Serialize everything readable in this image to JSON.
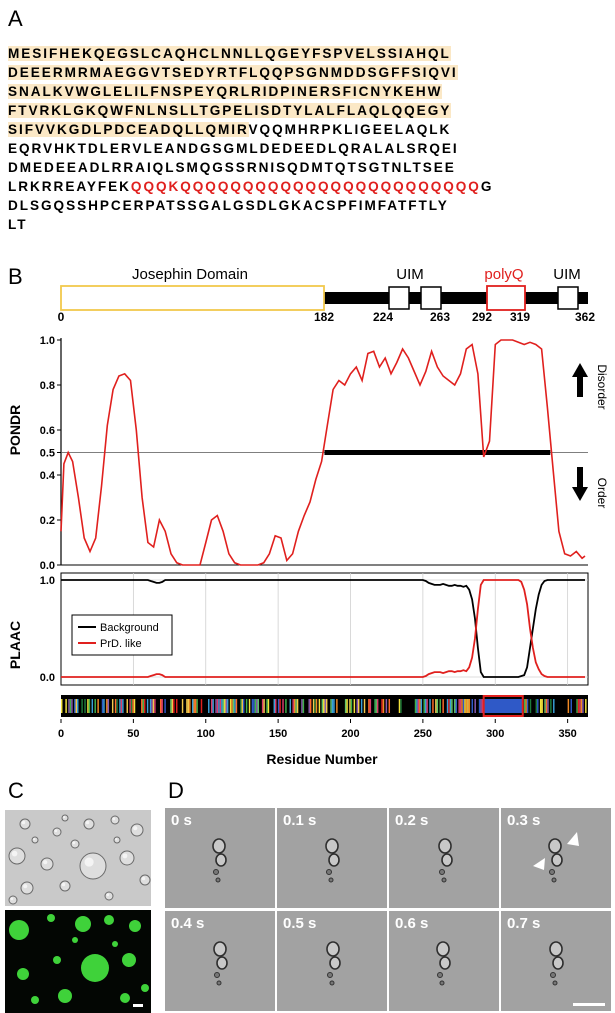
{
  "panels": {
    "a": "A",
    "b": "B",
    "c": "C",
    "d": "D"
  },
  "sequence": {
    "lines": [
      {
        "hl": "MESIFHEKQEGSLCAQHCLNNLLQGEYFSPVELSSIAHQL",
        "rest": "",
        "red": "",
        "tail": ""
      },
      {
        "hl": "DEEERMRMAEGGVTSEDYRTFLQQPSGNMDDSGFFSIQVI",
        "rest": "",
        "red": "",
        "tail": ""
      },
      {
        "hl": "SNALKVWGLELILFNSPEYQRLRIDPINERSFICNYKEHW",
        "rest": "",
        "red": "",
        "tail": ""
      },
      {
        "hl": "FTVRKLGKQWFNLNSLLTGPELISDTYLALFLAQLQQEGY",
        "rest": "",
        "red": "",
        "tail": ""
      },
      {
        "hl": "SIFVVKGDLPDCEADQLLQMIR",
        "rest": "VQQMHRPKLIGEELAQLK",
        "red": "",
        "tail": ""
      },
      {
        "hl": "",
        "rest": "EQRVHKTDLERVLEANDGSGMLDEDEEDLQRALALSRQEI",
        "red": "",
        "tail": ""
      },
      {
        "hl": "",
        "rest": "DMEDEEADLRRAIQLSMQGSSRNISQDMTQTSGTNLTSEE",
        "red": "",
        "tail": ""
      },
      {
        "hl": "",
        "rest": "LRKRREAYFEK",
        "red": "QQQKQQQQQQQQQQQQQQQQQQQQQQQQ",
        "tail": "G"
      },
      {
        "hl": "",
        "rest": "DLSGQSSHPCERPATSSGALGSDLGKACSPFIMFATFTLY",
        "red": "",
        "tail": ""
      },
      {
        "hl": "",
        "rest": "LT",
        "red": "",
        "tail": ""
      }
    ]
  },
  "domain_map": {
    "labels": {
      "josephin": "Josephin Domain",
      "uim1": "UIM",
      "polyq": "polyQ",
      "uim2": "UIM"
    },
    "positions": [
      {
        "label": "0",
        "value": 0
      },
      {
        "label": "182",
        "value": 182
      },
      {
        "label": "224",
        "value": 224
      },
      {
        "label": "263",
        "value": 263
      },
      {
        "label": "292",
        "value": 292
      },
      {
        "label": "319",
        "value": 319
      },
      {
        "label": "362",
        "value": 362
      }
    ],
    "colors": {
      "josephin": "#f2c94c",
      "polyq": "#e0201e",
      "backbone": "#000000"
    }
  },
  "chart_data": [
    {
      "type": "line",
      "ylabel": "PONDR",
      "xlim": [
        0,
        362
      ],
      "ylim": [
        0,
        1.0
      ],
      "yticks": [
        "0.0",
        "0.2",
        "0.4",
        "0.5",
        "0.6",
        "0.8",
        "1.0"
      ],
      "threshold": 0.5,
      "ordered_bar": [
        182,
        338
      ],
      "annotations": {
        "up": "Disorder",
        "down": "Order"
      },
      "series": [
        {
          "color": "#e0201e",
          "x": [
            0,
            2,
            5,
            8,
            12,
            16,
            20,
            24,
            28,
            32,
            36,
            40,
            44,
            48,
            52,
            56,
            60,
            64,
            68,
            72,
            76,
            80,
            84,
            88,
            92,
            96,
            100,
            104,
            108,
            112,
            116,
            120,
            124,
            128,
            132,
            136,
            140,
            144,
            148,
            152,
            156,
            160,
            164,
            168,
            172,
            176,
            180,
            184,
            188,
            192,
            196,
            200,
            204,
            208,
            212,
            216,
            220,
            224,
            228,
            232,
            236,
            240,
            244,
            248,
            252,
            256,
            260,
            264,
            268,
            272,
            276,
            280,
            284,
            288,
            292,
            296,
            300,
            304,
            308,
            312,
            316,
            320,
            324,
            328,
            332,
            336,
            340,
            344,
            348,
            352,
            356,
            360,
            362
          ],
          "y": [
            0.15,
            0.45,
            0.5,
            0.46,
            0.3,
            0.12,
            0.06,
            0.12,
            0.35,
            0.62,
            0.78,
            0.84,
            0.85,
            0.82,
            0.6,
            0.3,
            0.1,
            0.08,
            0.2,
            0.15,
            0.05,
            0.01,
            0.0,
            0.0,
            0.0,
            0.0,
            0.1,
            0.2,
            0.22,
            0.15,
            0.05,
            0.01,
            0.0,
            0.0,
            0.0,
            0.0,
            0.01,
            0.05,
            0.13,
            0.12,
            0.02,
            0.05,
            0.15,
            0.22,
            0.28,
            0.38,
            0.46,
            0.62,
            0.78,
            0.82,
            0.8,
            0.85,
            0.88,
            0.82,
            0.94,
            0.95,
            0.88,
            0.92,
            0.85,
            0.9,
            0.96,
            0.92,
            0.86,
            0.8,
            0.86,
            0.95,
            0.88,
            0.84,
            0.82,
            0.8,
            0.85,
            0.96,
            0.98,
            0.85,
            0.48,
            0.55,
            0.98,
            1.0,
            1.0,
            1.0,
            0.99,
            0.98,
            0.99,
            0.98,
            0.96,
            0.7,
            0.42,
            0.15,
            0.05,
            0.04,
            0.06,
            0.03,
            0.04
          ]
        }
      ]
    },
    {
      "type": "line",
      "ylabel": "PLAAC",
      "xlabel": "Residue Number",
      "xlim": [
        0,
        362
      ],
      "ylim": [
        0,
        1.0
      ],
      "yticks": [
        "0.0",
        "1.0"
      ],
      "xticks": [
        "0",
        "50",
        "100",
        "150",
        "200",
        "250",
        "300",
        "350"
      ],
      "grid": "vertical",
      "legend": "top-left",
      "series": [
        {
          "name": "Background",
          "color": "#000000",
          "x": [
            0,
            60,
            62,
            64,
            66,
            68,
            70,
            72,
            250,
            252,
            254,
            256,
            258,
            260,
            262,
            264,
            266,
            268,
            270,
            272,
            274,
            276,
            278,
            280,
            282,
            284,
            286,
            288,
            290,
            292,
            294,
            296,
            300,
            310,
            316,
            320,
            322,
            324,
            326,
            328,
            330,
            332,
            334,
            336,
            338,
            362
          ],
          "y": [
            1,
            1,
            0.99,
            0.98,
            0.97,
            0.97,
            0.98,
            1,
            1,
            0.99,
            0.97,
            0.96,
            0.95,
            0.95,
            0.95,
            0.96,
            0.95,
            0.94,
            0.94,
            0.95,
            0.94,
            0.94,
            0.93,
            0.94,
            0.9,
            0.8,
            0.6,
            0.3,
            0.05,
            0.0,
            0.0,
            0.0,
            0.0,
            0.0,
            0.0,
            0.02,
            0.1,
            0.3,
            0.5,
            0.7,
            0.85,
            0.95,
            0.99,
            1,
            1,
            1
          ]
        },
        {
          "name": "PrD. like",
          "color": "#e0201e",
          "x": [
            0,
            60,
            62,
            64,
            66,
            68,
            70,
            72,
            250,
            252,
            254,
            256,
            258,
            260,
            262,
            264,
            266,
            268,
            270,
            272,
            274,
            276,
            278,
            280,
            282,
            284,
            286,
            288,
            290,
            292,
            294,
            296,
            300,
            310,
            316,
            318,
            320,
            322,
            324,
            326,
            328,
            330,
            332,
            334,
            336,
            338,
            362
          ],
          "y": [
            0,
            0,
            0.01,
            0.02,
            0.03,
            0.03,
            0.02,
            0,
            0,
            0.01,
            0.03,
            0.04,
            0.05,
            0.05,
            0.05,
            0.04,
            0.05,
            0.06,
            0.06,
            0.05,
            0.06,
            0.06,
            0.07,
            0.06,
            0.1,
            0.2,
            0.4,
            0.7,
            0.95,
            1.0,
            1.0,
            1.0,
            1.0,
            1.0,
            1.0,
            0.98,
            0.9,
            0.75,
            0.5,
            0.3,
            0.15,
            0.08,
            0.03,
            0.01,
            0,
            0,
            0
          ]
        }
      ]
    }
  ],
  "composition_bar": {
    "highlight": [
      292,
      319
    ],
    "highlight_color": "#2f59c7",
    "highlight_border": "#e0201e"
  },
  "panel_c": {
    "scale_bar": "white"
  },
  "panel_d": {
    "frames": [
      "0 s",
      "0.1 s",
      "0.2 s",
      "0.3 s",
      "0.4 s",
      "0.5 s",
      "0.6 s",
      "0.7 s"
    ],
    "arrows_on": "0.3 s"
  }
}
